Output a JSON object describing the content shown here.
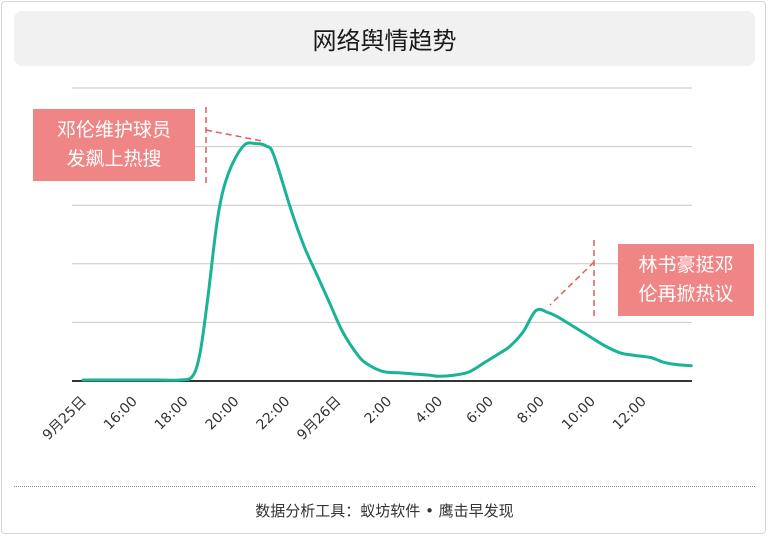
{
  "title": "网络舆情趋势",
  "source": "数据分析工具：蚁坊软件 • 鹰击早发现",
  "annotations": [
    {
      "lines": [
        "邓伦维护球员",
        "发飙上热搜"
      ],
      "at_x": "21:30"
    },
    {
      "lines": [
        "林书豪挺邓",
        "伦再掀热议"
      ],
      "at_x": "8:40"
    }
  ],
  "colors": {
    "line": "#1ab394",
    "callout": "#ef8585",
    "grid": "#c8c8c8",
    "axis": "#333333"
  },
  "chart_data": {
    "type": "line",
    "title": "网络舆情趋势",
    "xlabel": "",
    "ylabel": "",
    "x_tick_labels": [
      "9月25日",
      "16:00",
      "18:00",
      "20:00",
      "22:00",
      "9月26日",
      "2:00",
      "4:00",
      "6:00",
      "8:00",
      "10:00",
      "12:00"
    ],
    "x_unit": "hours since 9月25日 14:00",
    "x_range": [
      0,
      23.9
    ],
    "y_range": [
      0,
      100
    ],
    "y_axis_labels_shown": false,
    "gridlines": "horizontal",
    "series": [
      {
        "name": "",
        "x": [
          0,
          1,
          2,
          3,
          3.8,
          4.3,
          4.6,
          4.9,
          5.3,
          5.7,
          6.3,
          6.8,
          7.2,
          7.5,
          8.2,
          8.7,
          9.2,
          9.7,
          10.2,
          10.8,
          11.2,
          11.8,
          12.4,
          13.0,
          13.6,
          14.0,
          14.6,
          15.2,
          15.8,
          16.4,
          16.8,
          17.3,
          17.8,
          18.3,
          18.7,
          19.3,
          19.9,
          20.5,
          21.1,
          21.6,
          22.3,
          22.8,
          23.3,
          23.9
        ],
        "y": [
          0,
          0,
          0,
          0,
          0.2,
          2,
          12,
          35,
          70,
          88,
          100,
          101,
          100,
          96,
          72,
          57,
          45,
          33,
          21,
          11,
          7,
          4,
          3.5,
          3,
          2.5,
          2,
          2.5,
          4,
          8,
          12,
          15,
          21,
          30,
          29,
          27,
          23,
          19,
          15,
          12,
          11,
          10,
          8,
          7,
          6.5
        ]
      }
    ]
  }
}
